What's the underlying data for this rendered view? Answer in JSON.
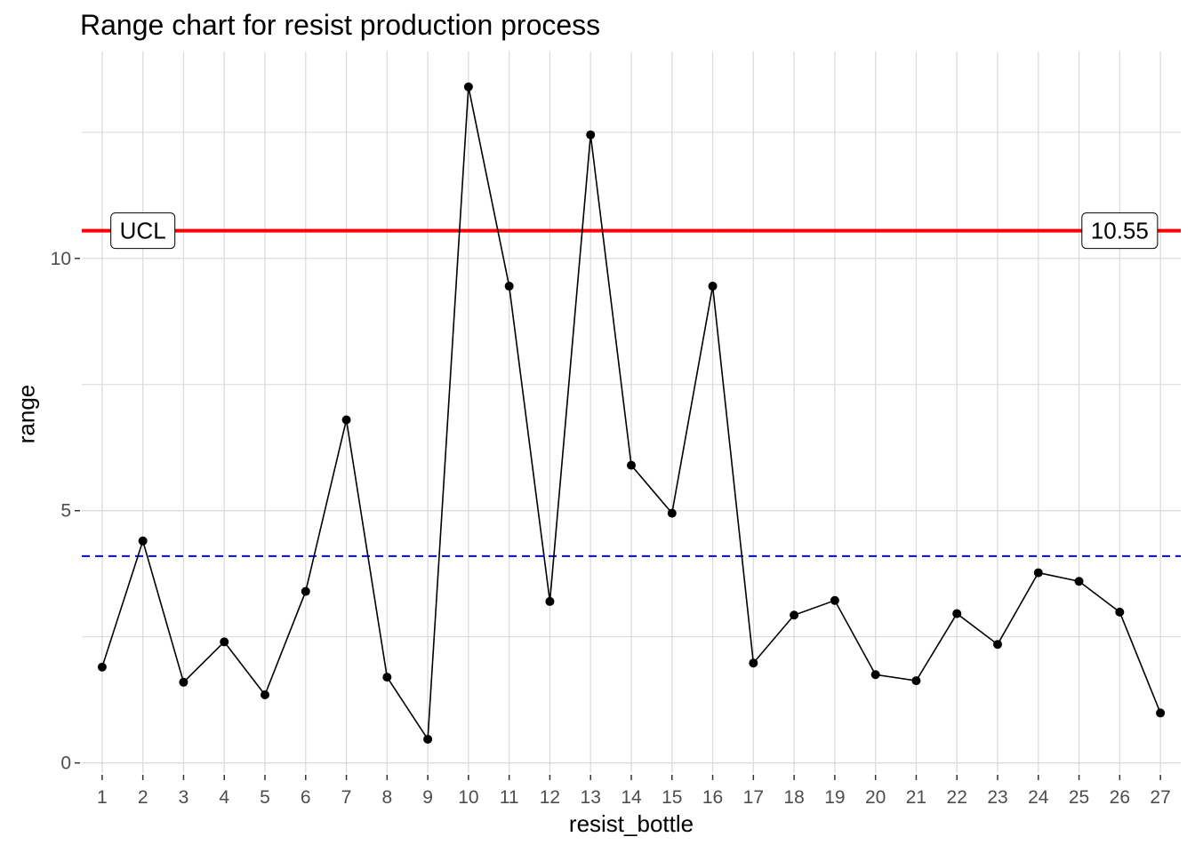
{
  "chart_data": {
    "type": "line",
    "title": "Range chart for resist production process",
    "xlabel": "resist_bottle",
    "ylabel": "range",
    "x": [
      1,
      2,
      3,
      4,
      5,
      6,
      7,
      8,
      9,
      10,
      11,
      12,
      13,
      14,
      15,
      16,
      17,
      18,
      19,
      20,
      21,
      22,
      23,
      24,
      25,
      26,
      27
    ],
    "values": [
      1.9,
      4.4,
      1.6,
      2.4,
      1.35,
      3.4,
      6.8,
      1.7,
      0.47,
      13.4,
      9.45,
      3.2,
      12.45,
      5.9,
      4.95,
      9.45,
      1.98,
      2.93,
      3.22,
      1.75,
      1.63,
      2.96,
      2.35,
      3.77,
      3.6,
      2.99,
      0.99
    ],
    "ylim": [
      -0.2,
      14.1
    ],
    "yticks": [
      0,
      5,
      10
    ],
    "center_line": 4.1,
    "ucl": 10.55,
    "ucl_label": "UCL",
    "ucl_value_label": "10.55",
    "grid": true,
    "colors": {
      "line": "#000000",
      "point": "#000000",
      "ucl": "#ff0000",
      "center": "#0000ff",
      "grid": "#d9d9d9"
    }
  }
}
